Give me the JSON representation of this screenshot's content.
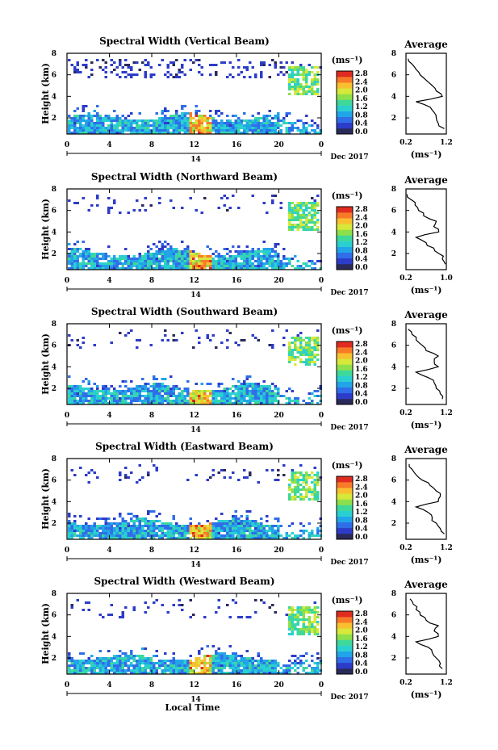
{
  "colorbar": {
    "unit": "(ms⁻¹)",
    "ticks": [
      "2.8",
      "2.4",
      "2.0",
      "1.6",
      "1.2",
      "0.8",
      "0.4",
      "0.0"
    ],
    "colors": [
      "#2a2a5a",
      "#2c3cc8",
      "#2f6ee8",
      "#22a4e8",
      "#2ad0d0",
      "#3ed89a",
      "#8ee04a",
      "#d8e83a",
      "#f8c030",
      "#f87a28",
      "#e02c20"
    ]
  },
  "x_axis": {
    "ticks": [
      "0",
      "4",
      "8",
      "12",
      "16",
      "20",
      "0"
    ],
    "date_label": "14",
    "month_label": "Dec 2017",
    "label": "Local Time"
  },
  "y_axis": {
    "label": "Height (km)",
    "ticks": [
      "2",
      "4",
      "6",
      "8"
    ]
  },
  "avg_panel": {
    "title": "Average",
    "xlabel": "(ms⁻¹)"
  },
  "chart_data": [
    {
      "type": "heatmap",
      "title": "Spectral Width (Vertical Beam)",
      "xlabel": "Local Time",
      "ylabel": "Height (km)",
      "x_range": [
        0,
        24
      ],
      "ylim": [
        0.5,
        8
      ],
      "clim": [
        0.0,
        2.8
      ],
      "average": {
        "title": "Average",
        "xlim": [
          0.2,
          1.2
        ],
        "xticks": [
          "0.2",
          "1.2"
        ],
        "ylim": [
          0.5,
          8
        ],
        "heights": [
          1.0,
          1.5,
          2.0,
          2.5,
          3.0,
          3.5,
          4.0,
          4.5,
          5.0,
          5.5,
          6.0,
          6.5,
          7.0,
          7.5
        ],
        "values": [
          1.15,
          1.0,
          0.95,
          0.9,
          0.8,
          0.45,
          1.1,
          0.95,
          0.85,
          0.7,
          0.55,
          0.45,
          0.35,
          0.25
        ]
      }
    },
    {
      "type": "heatmap",
      "title": "Spectral Width (Northward Beam)",
      "xlabel": "Local Time",
      "ylabel": "Height (km)",
      "x_range": [
        0,
        24
      ],
      "ylim": [
        0.5,
        8
      ],
      "clim": [
        0.0,
        2.8
      ],
      "average": {
        "title": "Average",
        "xlim": [
          0.2,
          1.0
        ],
        "xticks": [
          "0.2",
          "1.0"
        ],
        "ylim": [
          0.5,
          8
        ],
        "heights": [
          1.0,
          1.5,
          2.0,
          2.5,
          3.0,
          3.5,
          4.0,
          4.5,
          5.0,
          5.5,
          6.0,
          6.5,
          7.0,
          7.5
        ],
        "values": [
          0.98,
          0.92,
          0.85,
          0.75,
          0.6,
          0.4,
          0.85,
          0.75,
          0.8,
          0.55,
          0.45,
          0.38,
          0.3,
          0.22
        ]
      }
    },
    {
      "type": "heatmap",
      "title": "Spectral Width (Southward Beam)",
      "xlabel": "Local Time",
      "ylabel": "Height (km)",
      "x_range": [
        0,
        24
      ],
      "ylim": [
        0.5,
        8
      ],
      "clim": [
        0.0,
        2.8
      ],
      "average": {
        "title": "Average",
        "xlim": [
          0.2,
          1.2
        ],
        "xticks": [
          "0.2",
          "1.2"
        ],
        "ylim": [
          0.5,
          8
        ],
        "heights": [
          1.0,
          1.5,
          2.0,
          2.5,
          3.0,
          3.5,
          4.0,
          4.5,
          5.0,
          5.5,
          6.0,
          6.5,
          7.0,
          7.5
        ],
        "values": [
          1.1,
          1.05,
          0.95,
          0.9,
          0.75,
          0.45,
          1.0,
          0.9,
          1.0,
          0.7,
          0.6,
          0.45,
          0.35,
          0.25
        ]
      }
    },
    {
      "type": "heatmap",
      "title": "Spectral Width (Eastward Beam)",
      "xlabel": "Local Time",
      "ylabel": "Height (km)",
      "x_range": [
        0,
        24
      ],
      "ylim": [
        0.5,
        8
      ],
      "clim": [
        0.0,
        2.8
      ],
      "average": {
        "title": "Average",
        "xlim": [
          0.2,
          1.2
        ],
        "xticks": [
          "0.2",
          "1.2"
        ],
        "ylim": [
          0.5,
          8
        ],
        "heights": [
          1.0,
          1.5,
          2.0,
          2.5,
          3.0,
          3.5,
          4.0,
          4.5,
          5.0,
          5.5,
          6.0,
          6.5,
          7.0,
          7.5
        ],
        "values": [
          1.15,
          1.05,
          0.95,
          0.85,
          0.75,
          0.45,
          1.0,
          1.05,
          0.95,
          0.8,
          0.6,
          0.45,
          0.35,
          0.28
        ]
      }
    },
    {
      "type": "heatmap",
      "title": "Spectral Width (Westward Beam)",
      "xlabel": "Local Time",
      "ylabel": "Height (km)",
      "x_range": [
        0,
        24
      ],
      "ylim": [
        0.5,
        8
      ],
      "clim": [
        0.0,
        2.8
      ],
      "average": {
        "title": "Average",
        "xlim": [
          0.2,
          1.2
        ],
        "xticks": [
          "0.2",
          "1.2"
        ],
        "ylim": [
          0.5,
          8
        ],
        "heights": [
          1.0,
          1.5,
          2.0,
          2.5,
          3.0,
          3.5,
          4.0,
          4.5,
          5.0,
          5.5,
          6.0,
          6.5,
          7.0,
          7.5
        ],
        "values": [
          1.1,
          1.05,
          0.95,
          0.85,
          0.75,
          0.45,
          1.0,
          0.9,
          1.0,
          0.7,
          0.55,
          0.45,
          0.38,
          0.3
        ]
      }
    }
  ]
}
